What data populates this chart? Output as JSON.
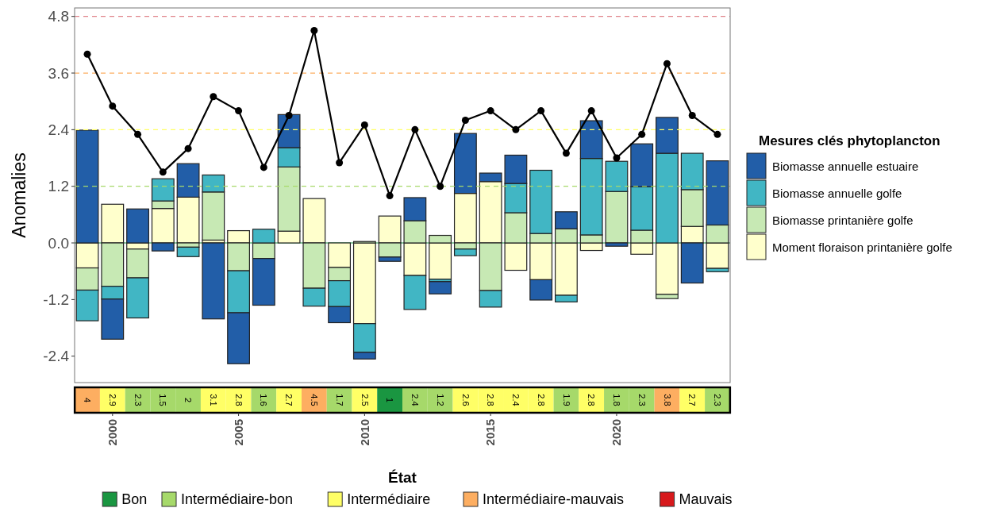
{
  "chart_data": [
    {
      "type": "bar",
      "stacked": true,
      "ylabel": "Anomalies",
      "legend_title": "Mesures clés phytoplancton",
      "legend": "right",
      "tick_labels": "y",
      "marker": "circle",
      "categories": [
        null,
        null,
        null,
        null,
        null,
        null,
        null,
        null,
        null,
        null,
        null,
        null,
        null,
        null,
        null,
        null,
        null,
        null,
        null,
        null,
        null,
        null,
        null,
        null,
        null,
        null
      ],
      "ylim": [
        -2.96,
        4.98
      ],
      "yticks": [
        -2.4,
        -1.2,
        {
          "value": 0,
          "label": "0.0"
        },
        1.2,
        2.4,
        3.6,
        4.8
      ],
      "ref_lines": [
        {
          "axis": "y",
          "value": 0,
          "color": "#1a9641",
          "line_style": "solid"
        },
        {
          "axis": "y",
          "value": 1.2,
          "color": "#a6d96a",
          "line_style": "dashed"
        },
        {
          "axis": "y",
          "value": 2.4,
          "color": "#ffff66",
          "line_style": "dashed"
        },
        {
          "axis": "y",
          "value": 3.6,
          "color": "#fdae61",
          "line_style": "dashed"
        },
        {
          "axis": "y",
          "value": 4.8,
          "color": "#e0838a",
          "line_style": "dashed"
        }
      ],
      "series": [
        {
          "name": "Moment floraison printanière golfe",
          "color": "#ffffcc",
          "values": [
            -0.53,
            0.82,
            -0.13,
            0.73,
            0.97,
            0.06,
            0.26,
            0,
            0.25,
            0.94,
            -0.52,
            -1.71,
            0.57,
            -0.69,
            -0.77,
            1.05,
            1.3,
            -0.58,
            -0.78,
            -1.11,
            -0.16,
            0,
            -0.24,
            -1.09,
            0.35,
            -0.54
          ]
        },
        {
          "name": "Biomasse printanière golfe",
          "color": "#c7e9b4",
          "values": [
            -0.47,
            -0.92,
            -0.61,
            0.16,
            -0.09,
            1.02,
            -0.59,
            -0.33,
            1.36,
            -0.96,
            -0.28,
            0.03,
            -0.3,
            0.47,
            0.16,
            -0.13,
            -1.01,
            0.64,
            0.2,
            0.3,
            0.17,
            1.09,
            0.27,
            -0.09,
            0.78,
            0.38
          ]
        },
        {
          "name": "Biomasse annuelle golfe",
          "color": "#41b6c4",
          "values": [
            -0.65,
            -0.27,
            -0.85,
            0.47,
            -0.2,
            0.36,
            -0.89,
            0.29,
            0.41,
            -0.38,
            -0.55,
            -0.61,
            0,
            -0.72,
            -0.05,
            -0.14,
            -0.35,
            0.62,
            1.34,
            -0.14,
            1.62,
            0.64,
            0.92,
            1.9,
            0.77,
            -0.07
          ]
        },
        {
          "name": "Biomasse annuelle estuaire",
          "color": "#225ea8",
          "values": [
            2.39,
            -0.85,
            0.72,
            -0.17,
            0.71,
            -1.61,
            -1.08,
            -0.99,
            0.7,
            0,
            -0.34,
            -0.14,
            -0.09,
            0.49,
            -0.26,
            1.27,
            0.18,
            0.6,
            -0.43,
            0.36,
            0.8,
            -0.07,
            0.91,
            0.76,
            -0.85,
            1.36
          ]
        },
        {
          "type": "line",
          "color": "#000000",
          "values": [
            4,
            2.9,
            2.3,
            1.5,
            2,
            3.1,
            2.8,
            1.6,
            2.7,
            4.5,
            1.7,
            2.5,
            1,
            2.4,
            1.2,
            2.6,
            2.8,
            2.4,
            2.8,
            1.9,
            2.8,
            1.8,
            2.3,
            3.8,
            2.7,
            2.3
          ]
        }
      ]
    },
    {
      "type": "heatmap",
      "data_labels": true,
      "legend": "bottom",
      "legend_title": "État",
      "categories": [
        null,
        "2000",
        null,
        null,
        null,
        null,
        "2005",
        null,
        null,
        null,
        null,
        "2010",
        null,
        null,
        null,
        null,
        "2015",
        null,
        null,
        null,
        null,
        "2020",
        null,
        null,
        null,
        null
      ],
      "y_categories": [
        null
      ],
      "cells": [
        [
          4,
          2.9,
          2.3,
          1.5,
          2,
          3.1,
          2.8,
          1.6,
          2.7,
          4.5,
          1.7,
          2.5,
          1,
          2.4,
          1.2,
          2.6,
          2.8,
          2.4,
          2.8,
          1.9,
          2.8,
          1.8,
          2.3,
          3.8,
          2.7,
          2.3
        ]
      ],
      "colors": [
        "#fdae61",
        "#ffff66",
        "#a6d96a",
        "#a6d96a",
        "#a6d96a",
        "#ffff66",
        "#ffff66",
        "#a6d96a",
        "#ffff66",
        "#fdae61",
        "#a6d96a",
        "#ffff66",
        "#1a9641",
        "#a6d96a",
        "#a6d96a",
        "#ffff66",
        "#ffff66",
        "#ffff66",
        "#ffff66",
        "#a6d96a",
        "#ffff66",
        "#a6d96a",
        "#a6d96a",
        "#fdae61",
        "#ffff66",
        "#a6d96a"
      ],
      "series": [
        {
          "name": "Bon",
          "color": "#1a9641",
          "values": [
            null,
            null,
            null,
            null,
            null,
            null,
            null,
            null,
            null,
            null,
            null,
            null,
            null,
            null,
            null,
            null,
            null,
            null,
            null,
            null,
            null,
            null,
            null,
            null,
            null,
            null
          ]
        },
        {
          "name": "Intermédiaire-bon",
          "color": "#a6d96a",
          "values": [
            null,
            null,
            null,
            null,
            null,
            null,
            null,
            null,
            null,
            null,
            null,
            null,
            null,
            null,
            null,
            null,
            null,
            null,
            null,
            null,
            null,
            null,
            null,
            null,
            null,
            null
          ]
        },
        {
          "name": "Intermédiaire",
          "color": "#ffff66",
          "values": [
            null,
            null,
            null,
            null,
            null,
            null,
            null,
            null,
            null,
            null,
            null,
            null,
            null,
            null,
            null,
            null,
            null,
            null,
            null,
            null,
            null,
            null,
            null,
            null,
            null,
            null
          ]
        },
        {
          "name": "Intermédiaire-mauvais",
          "color": "#fdae61",
          "values": [
            null,
            null,
            null,
            null,
            null,
            null,
            null,
            null,
            null,
            null,
            null,
            null,
            null,
            null,
            null,
            null,
            null,
            null,
            null,
            null,
            null,
            null,
            null,
            null,
            null,
            null
          ]
        },
        {
          "name": "Mauvais",
          "color": "#d7191c",
          "values": [
            null,
            null,
            null,
            null,
            null,
            null,
            null,
            null,
            null,
            null,
            null,
            null,
            null,
            null,
            null,
            null,
            null,
            null,
            null,
            null,
            null,
            null,
            null,
            null,
            null,
            null
          ]
        }
      ]
    }
  ]
}
